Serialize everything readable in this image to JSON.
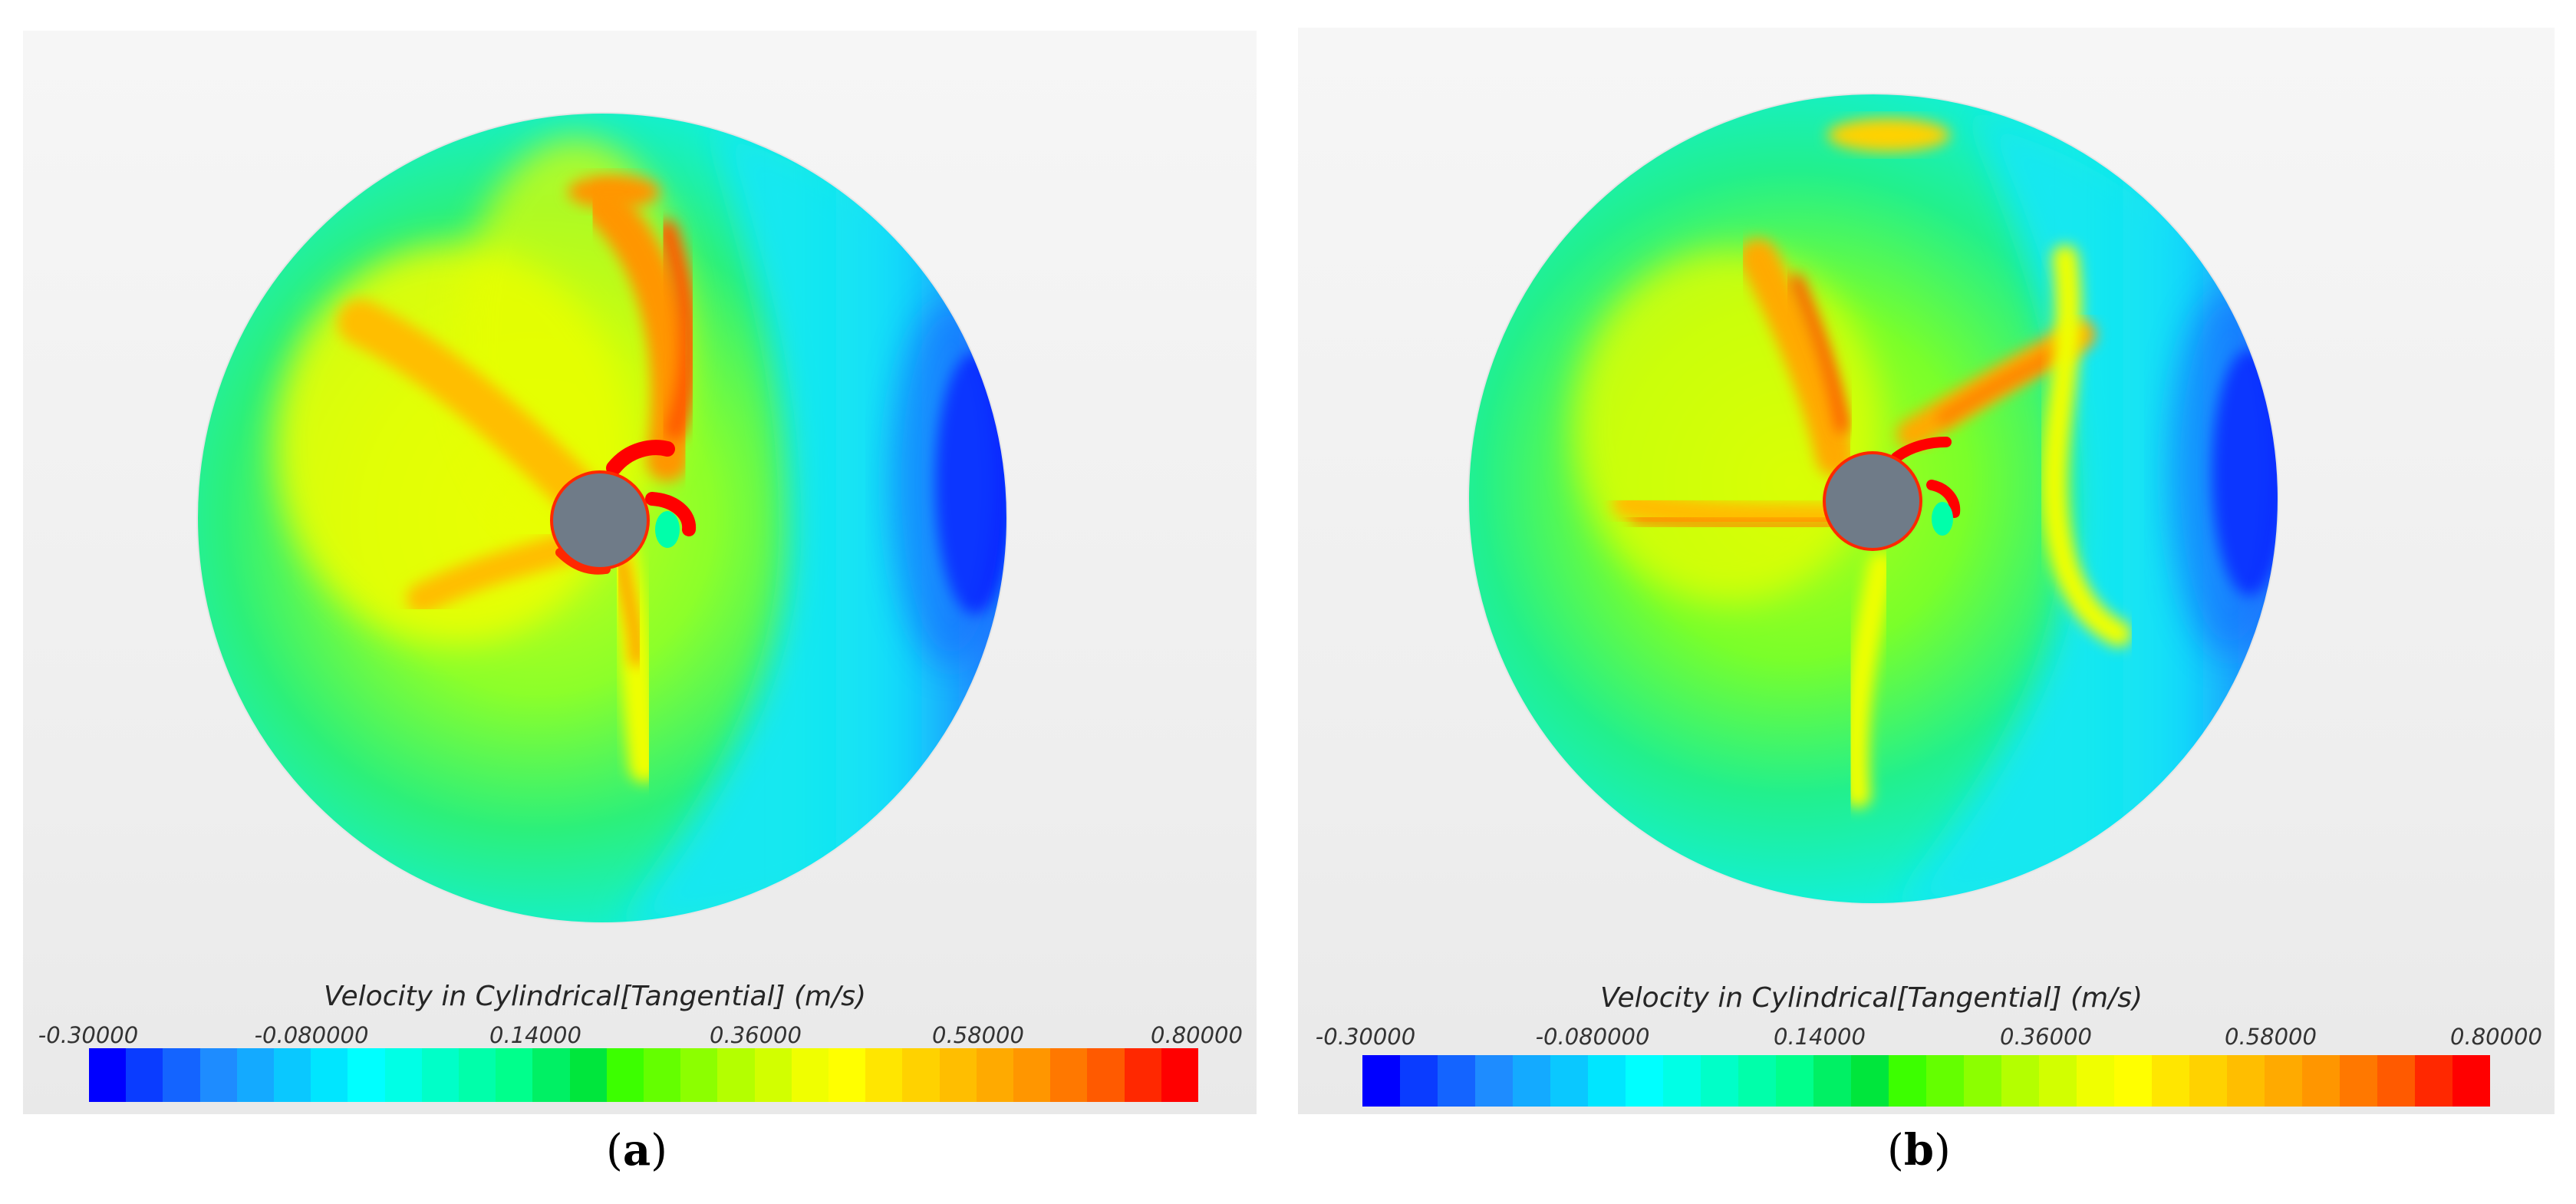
{
  "panels": [
    {
      "label_open": "(",
      "label_letter": "a",
      "label_close": ")",
      "colorbar": {
        "title": "Velocity in Cylindrical[Tangential] (m/s)",
        "ticks": [
          "-0.30000",
          "-0.080000",
          "0.14000",
          "0.36000",
          "0.58000",
          "0.80000"
        ]
      }
    },
    {
      "label_open": "(",
      "label_letter": "b",
      "label_close": ")",
      "colorbar": {
        "title": "Velocity in Cylindrical[Tangential] (m/s)",
        "ticks": [
          "-0.30000",
          "-0.080000",
          "0.14000",
          "0.36000",
          "0.58000",
          "0.80000"
        ]
      }
    }
  ],
  "colormap": [
    "#0000ff",
    "#0a3cff",
    "#1464ff",
    "#1e8cff",
    "#14aaff",
    "#0ac8ff",
    "#00e6ff",
    "#00ffff",
    "#00ffe6",
    "#00ffc8",
    "#00ffaa",
    "#00ff8c",
    "#00f064",
    "#00e63c",
    "#3cff00",
    "#64ff00",
    "#8cff00",
    "#b4ff00",
    "#d2ff00",
    "#f0ff00",
    "#ffff00",
    "#ffe600",
    "#ffd200",
    "#ffbe00",
    "#ffaa00",
    "#ff9600",
    "#ff7800",
    "#ff5a00",
    "#ff2800",
    "#ff0000"
  ],
  "hub_color": "#6f7b88"
}
